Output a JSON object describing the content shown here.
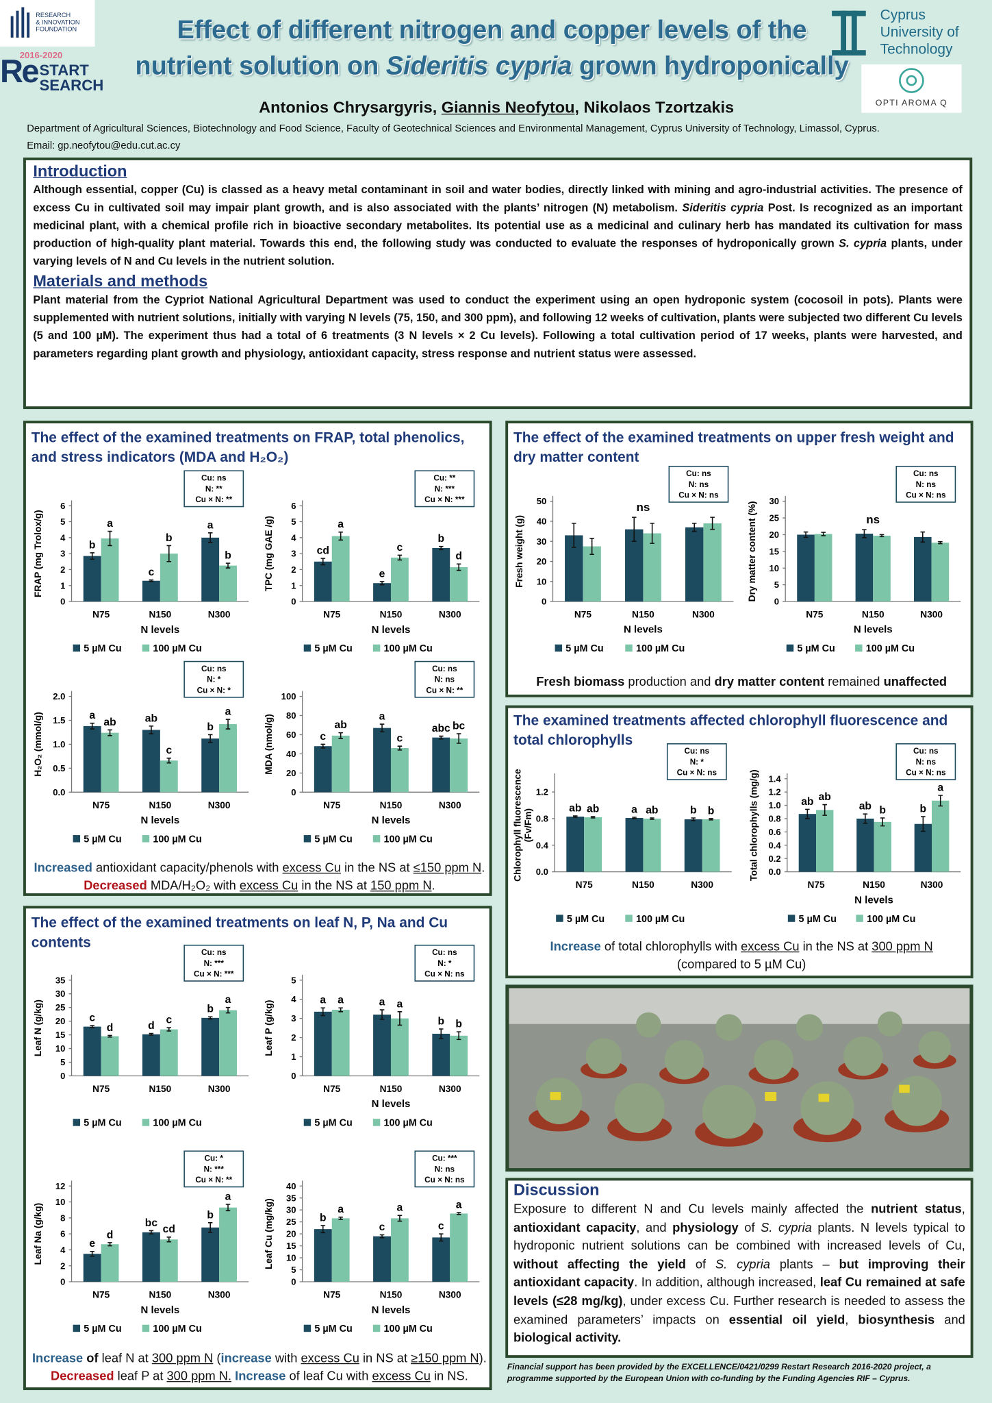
{
  "header": {
    "title": [
      "Effect of different nitrogen and copper levels of the",
      "nutrient solution on ",
      "Sideritis cypria",
      " grown hydroponically"
    ],
    "authors": [
      "Antonios Chrysargyris, ",
      "Giannis Neofytou",
      ", Nikolaos Tzortzakis"
    ],
    "affiliation": "Department of Agricultural Sciences, Biotechnology and Food Science, Faculty of Geotechnical Sciences and Environmental Management, Cyprus University of Technology, Limassol, Cyprus.",
    "email": "Email: gp.neofytou@edu.cut.ac.cy"
  },
  "logos": {
    "rif": [
      "RESEARCH",
      "& INNOVATION",
      "FOUNDATION"
    ],
    "restart": [
      "2016-2020",
      "Re",
      "START",
      "SEARCH"
    ],
    "cut": [
      "Cyprus",
      "University of",
      "Technology"
    ],
    "opti": "OPTI AROMA Q"
  },
  "intro": {
    "heading": "Introduction",
    "text": [
      "Although essential, copper (Cu) is classed as a heavy metal contaminant in soil and water bodies, directly linked with mining and agro-industrial activities. The presence of excess Cu in cultivated soil may impair plant growth, and is also associated with the plants’ nitrogen (N) metabolism. ",
      "Sideritis cypria",
      " Post. Is recognized as an important medicinal plant, with a chemical profile rich in bioactive secondary metabolites. Its potential use as a medicinal and culinary herb has mandated its cultivation for mass production of high-quality plant material. Towards this end, the following study was conducted to evaluate the responses of hydroponically grown ",
      "S. cypria",
      " plants, under varying levels of N and Cu levels in the nutrient solution."
    ]
  },
  "methods": {
    "heading": "Materials and methods",
    "text": "Plant material from the Cypriot National Agricultural Department was used to conduct the experiment using an open hydroponic system (cocosoil in pots). Plants were supplemented with nutrient solutions, initially with varying N levels (75, 150, and 300 ppm), and following 12 weeks of cultivation, plants were subjected two different Cu levels (5 and 100 µM). The experiment thus had a total of 6 treatments (3 N levels × 2 Cu levels). Following a total cultivation period of 17 weeks, plants were harvested, and parameters regarding plant growth and physiology, antioxidant capacity, stress response and nutrient status were assessed."
  },
  "panels": {
    "antioxidant": {
      "title": "The effect of the examined treatments on FRAP, total phenolics, and stress indicators (MDA and H₂O₂)",
      "caption": [
        "Increased",
        " antioxidant capacity/phenols with ",
        "excess Cu",
        " in the NS at ",
        "≤150 ppm N",
        ". ",
        "Decreased",
        " MDA/H₂O₂ with ",
        "excess Cu",
        " in the NS at ",
        "150 ppm N",
        "."
      ]
    },
    "growth": {
      "title": "The effect of the examined treatments on upper fresh weight and dry matter content",
      "caption": [
        "Fresh biomass",
        " production and ",
        "dry matter content",
        " remained ",
        "unaffected"
      ]
    },
    "chlorophyll": {
      "title": "The examined treatments affected chlorophyll fluorescence and total chlorophylls",
      "caption": [
        "Increase",
        " of total chlorophylls with ",
        "excess Cu",
        " in the NS at ",
        "300 ppm N",
        " (compared to 5 µM  Cu)"
      ]
    },
    "leaf": {
      "title": "The effect of the examined treatments on leaf N, P, Na and Cu contents",
      "caption": [
        "Increase",
        " of",
        " leaf N at ",
        "300 ppm N",
        " (",
        "increase",
        " with ",
        "excess Cu",
        " in NS at ",
        "≥150 ppm N",
        "). ",
        "Decreased",
        " leaf P at ",
        "300 ppm N.",
        " ",
        "Increase",
        " of leaf Cu with ",
        "excess Cu",
        " in NS."
      ]
    }
  },
  "discussion": {
    "heading": "Discussion",
    "text": [
      "Exposure to different N and Cu levels mainly affected the ",
      "nutrient status",
      ", ",
      "antioxidant capacity",
      ", and ",
      "physiology",
      " of ",
      "S. cypria",
      " plants. N levels typical to hydroponic nutrient solutions can be combined with increased levels of Cu, ",
      "without affecting the yield",
      " of ",
      "S. cypria",
      " plants – ",
      "but improving their antioxidant capacity",
      ". In addition, although increased, ",
      "leaf Cu remained at safe levels (≤28 mg/kg)",
      ", under excess Cu. Further research is needed to assess the examined parameters’ impacts on ",
      "essential oil yield",
      ", ",
      "biosynthesis",
      " and ",
      "biological activity."
    ]
  },
  "footer": "Financial support has been provided by the EXCELLENCE/0421/0299 Restart Research 2016-2020 project, a programme supported by the European Union with co-funding by the Funding Agencies RIF – Cyprus.",
  "chart_data": [
    {
      "type": "bar",
      "y_label": "FRAP (mg Trolox/g)",
      "x_label": "N levels",
      "categories": [
        "N75",
        "N150",
        "N300"
      ],
      "series": [
        {
          "name": "5 µM Cu",
          "color": "#1c4a5f",
          "values": [
            2.85,
            1.3,
            4.0
          ],
          "errors": [
            0.2,
            0.05,
            0.3
          ],
          "letters": [
            "b",
            "c",
            "a"
          ]
        },
        {
          "name": "100 µM Cu",
          "color": "#7cc5a9",
          "values": [
            3.95,
            3.0,
            2.25
          ],
          "errors": [
            0.45,
            0.5,
            0.15
          ],
          "letters": [
            "a",
            "b",
            "b"
          ]
        }
      ],
      "ylim": [
        0,
        6
      ],
      "yticks": [
        0,
        1,
        2,
        3,
        4,
        5,
        6
      ],
      "stats": [
        "Cu: ns",
        "N: **",
        "Cu × N: **"
      ]
    },
    {
      "type": "bar",
      "y_label": "TPC (mg GAE /g)",
      "x_label": "N levels",
      "categories": [
        "N75",
        "N150",
        "N300"
      ],
      "series": [
        {
          "name": "5 µM Cu",
          "color": "#1c4a5f",
          "values": [
            2.5,
            1.15,
            3.35
          ],
          "errors": [
            0.2,
            0.1,
            0.1
          ],
          "letters": [
            "cd",
            "e",
            "b"
          ]
        },
        {
          "name": "100 µM Cu",
          "color": "#7cc5a9",
          "values": [
            4.1,
            2.75,
            2.15
          ],
          "errors": [
            0.25,
            0.15,
            0.2
          ],
          "letters": [
            "a",
            "c",
            "d"
          ]
        }
      ],
      "ylim": [
        0,
        6
      ],
      "yticks": [
        0,
        1,
        2,
        3,
        4,
        5,
        6
      ],
      "stats": [
        "Cu: **",
        "N: ***",
        "Cu × N: ***"
      ]
    },
    {
      "type": "bar",
      "y_label": "H₂O₂ (mmol/g)",
      "x_label": "N levels",
      "categories": [
        "N75",
        "N150",
        "N300"
      ],
      "series": [
        {
          "name": "5 µM Cu",
          "color": "#1c4a5f",
          "values": [
            1.38,
            1.3,
            1.12
          ],
          "errors": [
            0.06,
            0.08,
            0.08
          ],
          "letters": [
            "a",
            "ab",
            "b"
          ]
        },
        {
          "name": "100 µM Cu",
          "color": "#7cc5a9",
          "values": [
            1.24,
            0.66,
            1.42
          ],
          "errors": [
            0.06,
            0.05,
            0.1
          ],
          "letters": [
            "ab",
            "c",
            "a"
          ]
        }
      ],
      "ylim": [
        0,
        2
      ],
      "yticks": [
        {
          "value": 0,
          "label": "0.0"
        },
        0.5,
        {
          "value": 1,
          "label": "1.0"
        },
        1.5,
        {
          "value": 2,
          "label": "2.0"
        }
      ],
      "stats": [
        "Cu: ns",
        "N: *",
        "Cu × N: *"
      ]
    },
    {
      "type": "bar",
      "y_label": "MDA (nmol/g)",
      "x_label": "N levels",
      "categories": [
        "N75",
        "N150",
        "N300"
      ],
      "series": [
        {
          "name": "5 µM Cu",
          "color": "#1c4a5f",
          "values": [
            48,
            67,
            57
          ],
          "errors": [
            2,
            4,
            1.5
          ],
          "letters": [
            "c",
            "a",
            "abc"
          ]
        },
        {
          "name": "100 µM Cu",
          "color": "#7cc5a9",
          "values": [
            59,
            46,
            56
          ],
          "errors": [
            3,
            2,
            5
          ],
          "letters": [
            "ab",
            "c",
            "bc"
          ]
        }
      ],
      "ylim": [
        0,
        100
      ],
      "yticks": [
        0,
        20,
        40,
        60,
        80,
        100
      ],
      "stats": [
        "Cu: ns",
        "N: ns",
        "Cu × N: **"
      ]
    },
    {
      "type": "bar",
      "y_label": "Fresh weight (g)",
      "x_label": "N levels",
      "categories": [
        "N75",
        "N150",
        "N300"
      ],
      "series": [
        {
          "name": "5 µM Cu",
          "color": "#1c4a5f",
          "values": [
            33,
            36,
            37
          ],
          "errors": [
            6,
            6,
            2
          ]
        },
        {
          "name": "100 µM Cu",
          "color": "#7cc5a9",
          "values": [
            27.5,
            34,
            39
          ],
          "errors": [
            4,
            5,
            3
          ]
        }
      ],
      "ylim": [
        0,
        50
      ],
      "yticks": [
        0,
        10,
        20,
        30,
        40,
        50
      ],
      "stats": [
        "Cu: ns",
        "N: ns",
        "Cu × N: ns"
      ],
      "annotation": "ns"
    },
    {
      "type": "bar",
      "y_label": "Dry matter content (%)",
      "x_label": "N levels",
      "categories": [
        "N75",
        "N150",
        "N300"
      ],
      "series": [
        {
          "name": "5 µM Cu",
          "color": "#1c4a5f",
          "values": [
            20,
            20.3,
            19.3
          ],
          "errors": [
            0.8,
            1.2,
            1.5
          ]
        },
        {
          "name": "100 µM Cu",
          "color": "#7cc5a9",
          "values": [
            20.2,
            19.7,
            17.6
          ],
          "errors": [
            0.5,
            0.3,
            0.3
          ]
        }
      ],
      "ylim": [
        0,
        30
      ],
      "yticks": [
        0,
        5,
        10,
        15,
        20,
        25,
        30
      ],
      "stats": [
        "Cu: ns",
        "N: ns",
        "Cu × N: ns"
      ],
      "annotation": "ns"
    },
    {
      "type": "bar",
      "y_label": [
        "Chlorophyll fluorescence",
        "(Fv/Fm)"
      ],
      "categories": [
        "N75",
        "N150",
        "N300"
      ],
      "series": [
        {
          "name": "5 µM Cu",
          "color": "#1c4a5f",
          "values": [
            0.83,
            0.81,
            0.79
          ],
          "errors": [
            0.01,
            0.01,
            0.02
          ],
          "letters": [
            "ab",
            "a",
            "b"
          ]
        },
        {
          "name": "100 µM Cu",
          "color": "#7cc5a9",
          "values": [
            0.82,
            0.8,
            0.79
          ],
          "errors": [
            0.01,
            0.01,
            0.01
          ],
          "letters": [
            "ab",
            "ab",
            "b"
          ]
        }
      ],
      "ylim": [
        0,
        1.4
      ],
      "yticks": [
        {
          "value": 0,
          "label": "0.0"
        },
        0.4,
        0.8,
        1.2
      ],
      "stats": [
        "Cu: ns",
        "N: *",
        "Cu × N: ns"
      ]
    },
    {
      "type": "bar",
      "y_label": "Total chlorophylls (mg/g)",
      "x_label": "N levels",
      "categories": [
        "N75",
        "N150",
        "N300"
      ],
      "series": [
        {
          "name": "5 µM Cu",
          "color": "#1c4a5f",
          "values": [
            0.87,
            0.8,
            0.72
          ],
          "errors": [
            0.07,
            0.07,
            0.11
          ],
          "letters": [
            "ab",
            "ab",
            "b"
          ]
        },
        {
          "name": "100 µM Cu",
          "color": "#7cc5a9",
          "values": [
            0.93,
            0.75,
            1.07
          ],
          "errors": [
            0.08,
            0.06,
            0.08
          ],
          "letters": [
            "ab",
            "b",
            "a"
          ]
        }
      ],
      "ylim": [
        0,
        1.4
      ],
      "yticks": [
        {
          "value": 0,
          "label": "0.0"
        },
        0.2,
        0.4,
        0.6,
        0.8,
        {
          "value": 1,
          "label": "1.0"
        },
        1.2,
        1.4
      ],
      "stats": [
        "Cu: ns",
        "N: ns",
        "Cu × N: ns"
      ]
    },
    {
      "type": "bar",
      "y_label": "Leaf N (g/kg)",
      "categories": [
        "N75",
        "N150",
        "N300"
      ],
      "series": [
        {
          "name": "5 µM Cu",
          "color": "#1c4a5f",
          "values": [
            18,
            15.2,
            21.2
          ],
          "errors": [
            0.4,
            0.3,
            0.4
          ],
          "letters": [
            "c",
            "d",
            "b"
          ]
        },
        {
          "name": "100 µM Cu",
          "color": "#7cc5a9",
          "values": [
            14.5,
            17,
            24
          ],
          "errors": [
            0.3,
            0.6,
            1.0
          ],
          "letters": [
            "d",
            "c",
            "a"
          ]
        }
      ],
      "ylim": [
        0,
        35
      ],
      "yticks": [
        0,
        5,
        10,
        15,
        20,
        25,
        30,
        35
      ],
      "stats": [
        "Cu: ns",
        "N: ***",
        "Cu × N: ***"
      ]
    },
    {
      "type": "bar",
      "y_label": "Leaf P (g/kg)",
      "x_label": "N levels",
      "categories": [
        "N75",
        "N150",
        "N300"
      ],
      "series": [
        {
          "name": "5 µM Cu",
          "color": "#1c4a5f",
          "values": [
            3.35,
            3.2,
            2.2
          ],
          "errors": [
            0.2,
            0.25,
            0.25
          ],
          "letters": [
            "a",
            "a",
            "b"
          ]
        },
        {
          "name": "100 µM Cu",
          "color": "#7cc5a9",
          "values": [
            3.45,
            3.0,
            2.1
          ],
          "errors": [
            0.1,
            0.35,
            0.2
          ],
          "letters": [
            "a",
            "a",
            "b"
          ]
        }
      ],
      "ylim": [
        0,
        5
      ],
      "yticks": [
        0,
        1,
        2,
        3,
        4,
        5
      ],
      "stats": [
        "Cu: ns",
        "N: *",
        "Cu × N: ns"
      ]
    },
    {
      "type": "bar",
      "y_label": "Leaf Na (g/kg)",
      "x_label": "N levels",
      "categories": [
        "N75",
        "N150",
        "N300"
      ],
      "series": [
        {
          "name": "5 µM Cu",
          "color": "#1c4a5f",
          "values": [
            3.5,
            6.2,
            6.8
          ],
          "errors": [
            0.3,
            0.2,
            0.6
          ],
          "letters": [
            "e",
            "bc",
            "b"
          ]
        },
        {
          "name": "100 µM Cu",
          "color": "#7cc5a9",
          "values": [
            4.7,
            5.3,
            9.3
          ],
          "errors": [
            0.2,
            0.3,
            0.4
          ],
          "letters": [
            "d",
            "cd",
            "a"
          ]
        }
      ],
      "ylim": [
        0,
        12
      ],
      "yticks": [
        0,
        2,
        4,
        6,
        8,
        10,
        12
      ],
      "stats": [
        "Cu: *",
        "N: ***",
        "Cu × N: **"
      ]
    },
    {
      "type": "bar",
      "y_label": "Leaf Cu (mg/kg)",
      "x_label": "N levels",
      "categories": [
        "N75",
        "N150",
        "N300"
      ],
      "series": [
        {
          "name": "5 µM Cu",
          "color": "#1c4a5f",
          "values": [
            22,
            19,
            18.5
          ],
          "errors": [
            1.5,
            0.6,
            1.5
          ],
          "letters": [
            "b",
            "c",
            "c"
          ]
        },
        {
          "name": "100 µM Cu",
          "color": "#7cc5a9",
          "values": [
            26.5,
            26.5,
            28.5
          ],
          "errors": [
            0.5,
            1.2,
            0.4
          ],
          "letters": [
            "a",
            "a",
            "a"
          ]
        }
      ],
      "ylim": [
        0,
        40
      ],
      "yticks": [
        0,
        5,
        10,
        15,
        20,
        25,
        30,
        35,
        40
      ],
      "stats": [
        "Cu: ***",
        "N: ns",
        "Cu × N: ns"
      ]
    }
  ]
}
